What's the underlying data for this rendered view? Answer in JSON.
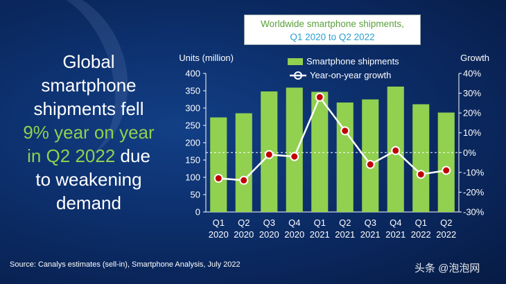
{
  "headline": {
    "line1": "Global",
    "line2": "smartphone",
    "line3": "shipments fell",
    "highlight1": "9% year on year",
    "highlight2": "in Q2 2022",
    "line4_rest": " due",
    "line5": "to weakening",
    "line6": "demand"
  },
  "title": {
    "line1": "Worldwide smartphone shipments,",
    "line2": "Q1 2020 to Q2 2022"
  },
  "source": "Source: Canalys estimates (sell-in), Smartphone Analysis, July 2022",
  "watermark": "头条 @泡泡网",
  "colors": {
    "bar": "#92d050",
    "line": "#ffffff",
    "marker_fill": "#c00000",
    "highlight_text": "#8fd14f",
    "title_green": "#5aa03a",
    "title_blue": "#2a9fd0"
  },
  "chart_data": {
    "type": "bar",
    "categories": [
      [
        "Q1",
        "2020"
      ],
      [
        "Q2",
        "2020"
      ],
      [
        "Q3",
        "2020"
      ],
      [
        "Q4",
        "2020"
      ],
      [
        "Q1",
        "2021"
      ],
      [
        "Q2",
        "2021"
      ],
      [
        "Q3",
        "2021"
      ],
      [
        "Q4",
        "2021"
      ],
      [
        "Q1",
        "2022"
      ],
      [
        "Q2",
        "2022"
      ]
    ],
    "series": [
      {
        "name": "Smartphone shipments",
        "type": "bar",
        "axis": "left",
        "values": [
          273,
          285,
          348,
          359,
          347,
          316,
          325,
          362,
          311,
          287
        ]
      },
      {
        "name": "Year-on-year growth",
        "type": "line",
        "axis": "right",
        "values": [
          -13,
          -14,
          -1,
          -2,
          28,
          11,
          -6,
          1,
          -11,
          -9
        ]
      }
    ],
    "ylabel_left": "Units (million)",
    "ylabel_right": "Growth",
    "ylim_left": [
      0,
      400
    ],
    "yticks_left": [
      "0",
      "50",
      "100",
      "150",
      "200",
      "250",
      "300",
      "350",
      "400"
    ],
    "ylim_right": [
      -30,
      40
    ],
    "yticks_right": [
      "-30%",
      "-20%",
      "-10%",
      "0%",
      "10%",
      "20%",
      "30%",
      "40%"
    ],
    "zero_line": "dashed",
    "legend_position": "top"
  }
}
